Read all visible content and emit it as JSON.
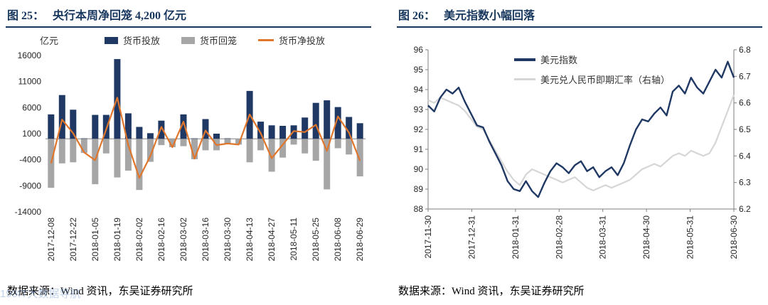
{
  "colors": {
    "title_navy": "#17365D",
    "bar_blue": "#1F3864",
    "bar_gray": "#A6A6A6",
    "line_orange": "#E0762C",
    "line_light_gray": "#D6D6D6",
    "axis_gray": "#7f7f7f"
  },
  "watermark": {
    "text": "199IT大数据导航"
  },
  "figures": [
    {
      "label": "图 25：",
      "title": "央行本周净回笼 4,200 亿元",
      "unit_label": "亿元",
      "legend": [
        "货币投放",
        "货币回笼",
        "货币净投放"
      ],
      "source": "数据来源：Wind 资讯，东吴证券研究所"
    },
    {
      "label": "图 26：",
      "title": "美元指数小幅回落",
      "legend": [
        "美元指数",
        "美元兑人民币即期汇率（右轴）"
      ],
      "source": "数据来源：Wind 资讯，东吴证券研究所"
    }
  ],
  "chart_data": [
    {
      "type": "bar",
      "title": "央行本周净回笼 4,200 亿元",
      "ylabel": "亿元",
      "ylim": [
        -14000,
        16000
      ],
      "y_ticks": [
        16000,
        11000,
        6000,
        1000,
        -4000,
        -9000,
        -14000
      ],
      "grid": false,
      "legend_position": "top",
      "x_tick_labels": [
        "2017-12-08",
        "2017-12-22",
        "2018-01-05",
        "2018-01-19",
        "2018-02-02",
        "2018-02-16",
        "2018-03-02",
        "2018-03-16",
        "2018-03-30",
        "2018-04-13",
        "2018-04-27",
        "2018-05-11",
        "2018-05-25",
        "2018-06-08",
        "2018-06-29"
      ],
      "label_every": 2,
      "series": [
        {
          "name": "货币投放",
          "type": "bar",
          "color": "#1F3864",
          "values": [
            4700,
            8400,
            5600,
            100,
            4600,
            4600,
            15300,
            4900,
            2300,
            1100,
            3500,
            0,
            4700,
            100,
            3800,
            1000,
            100,
            0,
            9200,
            3300,
            2600,
            2500,
            2600,
            4100,
            6900,
            7400,
            6100,
            4200,
            3000
          ]
        },
        {
          "name": "货币回笼",
          "type": "bar",
          "color": "#A6A6A6",
          "values": [
            -9400,
            -4700,
            -4500,
            -2700,
            -8700,
            -2800,
            -7400,
            -6100,
            -9800,
            -4400,
            -1200,
            -1600,
            -1400,
            -3900,
            -2200,
            -2200,
            -1000,
            -1100,
            -4500,
            -2200,
            -6300,
            -3600,
            -1100,
            -2800,
            -4200,
            -9700,
            -1800,
            -3000,
            -7200
          ]
        },
        {
          "name": "货币净投放",
          "type": "line",
          "color": "#E0762C",
          "values": [
            -4700,
            3700,
            1100,
            -2600,
            -4100,
            1800,
            7900,
            -1200,
            -7500,
            -3300,
            2300,
            -1600,
            3300,
            -3800,
            1600,
            -1200,
            -900,
            -1100,
            4700,
            1100,
            -3700,
            -1100,
            1500,
            1300,
            2700,
            -2300,
            4300,
            1200,
            -4200
          ]
        }
      ]
    },
    {
      "type": "line",
      "title": "美元指数小幅回落",
      "ylim_left": [
        88,
        96
      ],
      "y_ticks_left": [
        96,
        95,
        94,
        93,
        92,
        91,
        90,
        89,
        88
      ],
      "ylim_right": [
        6.2,
        6.8
      ],
      "y_ticks_right": [
        6.8,
        6.7,
        6.6,
        6.5,
        6.4,
        6.3,
        6.2
      ],
      "grid": false,
      "legend_position": "top",
      "x_tick_labels": [
        "2017-11-30",
        "2017-12-31",
        "2018-01-31",
        "2018-02-28",
        "2018-03-31",
        "2018-04-30",
        "2018-05-31",
        "2018-06-30"
      ],
      "series": [
        {
          "name": "美元指数",
          "axis": "left",
          "color": "#1F3864",
          "values": [
            93.2,
            92.9,
            93.6,
            94.0,
            93.8,
            94.1,
            93.4,
            92.8,
            92.2,
            92.1,
            91.4,
            90.8,
            90.2,
            89.4,
            89.0,
            88.9,
            89.4,
            88.9,
            88.6,
            89.3,
            89.9,
            90.3,
            90.1,
            89.8,
            90.2,
            90.4,
            89.9,
            90.1,
            89.6,
            89.9,
            90.1,
            89.7,
            90.3,
            91.2,
            92.0,
            92.5,
            92.4,
            92.8,
            93.1,
            92.7,
            93.9,
            94.2,
            93.8,
            94.6,
            94.1,
            93.8,
            94.4,
            95.0,
            94.6,
            95.4,
            94.6
          ]
        },
        {
          "name": "美元兑人民币即期汇率（右轴）",
          "axis": "right",
          "color": "#D6D6D6",
          "values": [
            6.61,
            6.6,
            6.62,
            6.61,
            6.6,
            6.59,
            6.57,
            6.54,
            6.51,
            6.5,
            6.46,
            6.42,
            6.38,
            6.34,
            6.31,
            6.29,
            6.33,
            6.35,
            6.34,
            6.33,
            6.32,
            6.31,
            6.3,
            6.31,
            6.32,
            6.3,
            6.28,
            6.27,
            6.28,
            6.29,
            6.28,
            6.29,
            6.3,
            6.31,
            6.33,
            6.35,
            6.36,
            6.37,
            6.36,
            6.38,
            6.4,
            6.41,
            6.4,
            6.42,
            6.41,
            6.4,
            6.41,
            6.45,
            6.51,
            6.57,
            6.63
          ]
        }
      ]
    }
  ]
}
